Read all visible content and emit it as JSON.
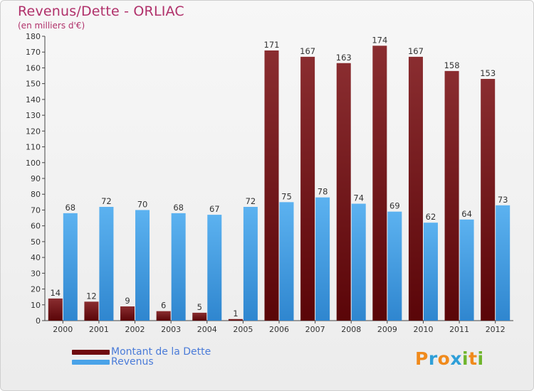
{
  "title": "Revenus/Dette - ORLIAC",
  "subtitle": "(en milliers d'€)",
  "colors": {
    "dette": "#6e0a0f",
    "revenus": "#4aa3e8",
    "title": "#b0306a",
    "legend_text": "#4a7bd8"
  },
  "legend": [
    {
      "label": "Montant de la Dette",
      "color": "#6e0a0f"
    },
    {
      "label": "Revenus",
      "color": "#4aa3e8"
    }
  ],
  "logo": {
    "text": "Proxiti",
    "letters": [
      {
        "ch": "P",
        "color": "#f08a1c"
      },
      {
        "ch": "r",
        "color": "#2f9fd8"
      },
      {
        "ch": "o",
        "color": "#f08a1c"
      },
      {
        "ch": "x",
        "color": "#2f9fd8"
      },
      {
        "ch": "i",
        "color": "#6fb52c"
      },
      {
        "ch": "t",
        "color": "#f08a1c"
      },
      {
        "ch": "i",
        "color": "#6fb52c"
      }
    ]
  },
  "chart_data": {
    "type": "bar",
    "categories": [
      "2000",
      "2001",
      "2002",
      "2003",
      "2004",
      "2005",
      "2006",
      "2007",
      "2008",
      "2009",
      "2010",
      "2011",
      "2012"
    ],
    "series": [
      {
        "name": "Montant de la Dette",
        "values": [
          14,
          12,
          9,
          6,
          5,
          1,
          171,
          167,
          163,
          174,
          167,
          158,
          153
        ]
      },
      {
        "name": "Revenus",
        "values": [
          68,
          72,
          70,
          68,
          67,
          72,
          75,
          78,
          74,
          69,
          62,
          64,
          73
        ]
      }
    ],
    "ylim": [
      0,
      180
    ],
    "yticks": [
      0,
      10,
      20,
      30,
      40,
      50,
      60,
      70,
      80,
      90,
      100,
      110,
      120,
      130,
      140,
      150,
      160,
      170,
      180
    ],
    "grid": false,
    "legend_position": "bottom-left"
  }
}
